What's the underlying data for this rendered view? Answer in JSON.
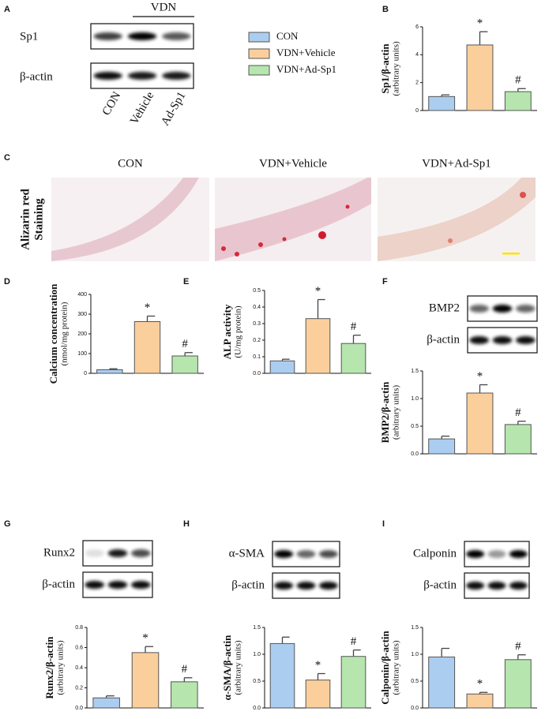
{
  "panel_a": {
    "letter": "A",
    "group_label": "VDN",
    "rows": [
      "Sp1",
      "β-actin"
    ],
    "lanes": [
      "CON",
      "Vehicle",
      "Ad-Sp1"
    ]
  },
  "legend": [
    {
      "name": "CON",
      "color": "#abcdf0"
    },
    {
      "name": "VDN+Vehicle",
      "color": "#fbcf9c"
    },
    {
      "name": "VDN+Ad-Sp1",
      "color": "#b6e6ae"
    }
  ],
  "panel_c": {
    "letter": "C",
    "columns": [
      "CON",
      "VDN+Vehicle",
      "VDN+Ad-Sp1"
    ],
    "row_label": [
      "Alizarin red",
      "Staining"
    ]
  },
  "chart_data": [
    {
      "type": "bar",
      "panel": "B",
      "ylabel": "Sp1/β-actin",
      "ylabel_unit": "(arbitrary units)",
      "categories": [
        null,
        null,
        null
      ],
      "values": [
        1.0,
        4.7,
        1.35
      ],
      "errors": [
        0.12,
        0.95,
        0.22
      ],
      "marks": [
        null,
        "*",
        "#"
      ],
      "ylim": [
        0,
        6
      ],
      "yticks": [
        0,
        2,
        4,
        6
      ]
    },
    {
      "type": "bar",
      "panel": "D",
      "ylabel": "Calcium concentration",
      "ylabel_unit": "(nmol/mg protein)",
      "categories": [
        null,
        null,
        null
      ],
      "values": [
        18,
        262,
        88
      ],
      "errors": [
        5,
        28,
        17
      ],
      "marks": [
        null,
        "*",
        "#"
      ],
      "ylim": [
        0,
        400
      ],
      "yticks": [
        0,
        100,
        200,
        300,
        400
      ]
    },
    {
      "type": "bar",
      "panel": "E",
      "ylabel": "ALP activity",
      "ylabel_unit": "(U/mg protein)",
      "categories": [
        null,
        null,
        null
      ],
      "values": [
        0.075,
        0.33,
        0.18
      ],
      "errors": [
        0.01,
        0.115,
        0.05
      ],
      "marks": [
        null,
        "*",
        "#"
      ],
      "ylim": [
        0,
        0.5
      ],
      "yticks": [
        {
          "value": 0,
          "label": "0.0"
        },
        0.1,
        0.2,
        0.3,
        0.4,
        0.5
      ]
    },
    {
      "type": "bar",
      "panel": "F",
      "blot_rows": [
        "BMP2",
        "β-actin"
      ],
      "ylabel": "BMP2/β-actin",
      "ylabel_unit": "(arbitrary units)",
      "categories": [
        null,
        null,
        null
      ],
      "values": [
        0.27,
        1.1,
        0.53
      ],
      "errors": [
        0.05,
        0.15,
        0.06
      ],
      "marks": [
        null,
        "*",
        "#"
      ],
      "ylim": [
        0,
        1.5
      ],
      "yticks": [
        {
          "value": 0,
          "label": "0.0"
        },
        0.5,
        {
          "value": 1,
          "label": "1.0"
        },
        1.5
      ]
    },
    {
      "type": "bar",
      "panel": "G",
      "blot_rows": [
        "Runx2",
        "β-actin"
      ],
      "ylabel": "Runx2/β-actin",
      "ylabel_unit": "(arbitrary units)",
      "categories": [
        null,
        null,
        null
      ],
      "values": [
        0.1,
        0.55,
        0.26
      ],
      "errors": [
        0.02,
        0.06,
        0.04
      ],
      "marks": [
        null,
        "*",
        "#"
      ],
      "ylim": [
        0,
        0.8
      ],
      "yticks": [
        {
          "value": 0,
          "label": "0.0"
        },
        0.2,
        0.4,
        0.6,
        0.8
      ]
    },
    {
      "type": "bar",
      "panel": "H",
      "blot_rows": [
        "α-SMA",
        "β-actin"
      ],
      "ylabel": "α-SMA/β-actin",
      "ylabel_unit": "(arbitrary units)",
      "categories": [
        null,
        null,
        null
      ],
      "values": [
        1.2,
        0.52,
        0.96
      ],
      "errors": [
        0.12,
        0.12,
        0.12
      ],
      "marks": [
        null,
        "*",
        "#"
      ],
      "ylim": [
        0,
        1.5
      ],
      "yticks": [
        {
          "value": 0,
          "label": "0.0"
        },
        0.5,
        {
          "value": 1,
          "label": "1.0"
        },
        1.5
      ]
    },
    {
      "type": "bar",
      "panel": "I",
      "blot_rows": [
        "Calponin",
        "β-actin"
      ],
      "ylabel": "Calponin/β-actin",
      "ylabel_unit": "(arbitrary units)",
      "categories": [
        null,
        null,
        null
      ],
      "values": [
        0.95,
        0.26,
        0.9
      ],
      "errors": [
        0.16,
        0.03,
        0.09
      ],
      "marks": [
        null,
        "*",
        "#"
      ],
      "ylim": [
        0,
        1.5
      ],
      "yticks": [
        {
          "value": 0,
          "label": "0.0"
        },
        0.5,
        {
          "value": 1,
          "label": "1.0"
        },
        1.5
      ]
    }
  ]
}
